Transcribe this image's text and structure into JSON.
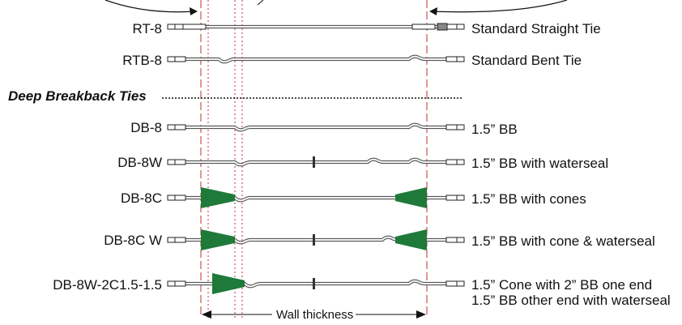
{
  "section": {
    "title": "Deep Breakback Ties"
  },
  "ties": [
    {
      "code": "RT-8",
      "description": "Standard Straight Tie"
    },
    {
      "code": "RTB-8",
      "description": "Standard Bent Tie"
    },
    {
      "code": "DB-8",
      "description": "1.5” BB"
    },
    {
      "code": "DB-8W",
      "description": "1.5” BB with waterseal"
    },
    {
      "code": "DB-8C",
      "description": "1.5” BB with cones"
    },
    {
      "code": "DB-8C W",
      "description": "1.5” BB with cone & waterseal"
    },
    {
      "code": "DB-8W-2C1.5-1.5",
      "description": "1.5” Cone with 2” BB one end",
      "description_line2": "1.5” BB other end with waterseal"
    }
  ],
  "dimension": {
    "label": "Wall thickness"
  },
  "colors": {
    "cone": "#1f7a3a",
    "wall_line": "#c0312b",
    "rod": "#555555"
  }
}
